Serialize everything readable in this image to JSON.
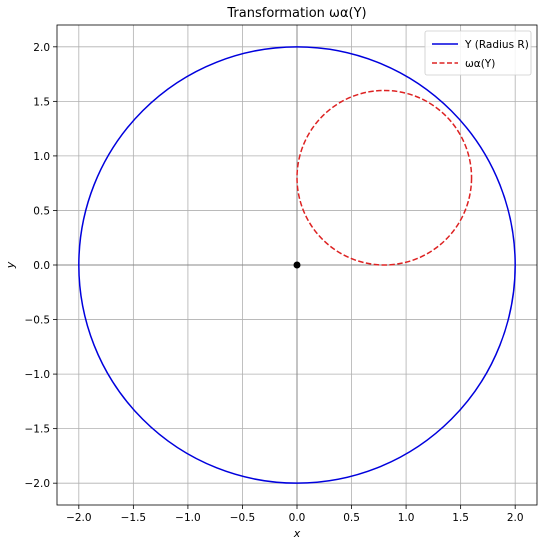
{
  "chart_data": {
    "type": "line",
    "title": "Transformation ωα(Y)",
    "xlabel": "x",
    "ylabel": "y",
    "xlim": [
      -2.2,
      2.2
    ],
    "ylim": [
      -2.2,
      2.2
    ],
    "x_ticks": [
      -2.0,
      -1.5,
      -1.0,
      -0.5,
      0.0,
      0.5,
      1.0,
      1.5,
      2.0
    ],
    "y_ticks": [
      -2.0,
      -1.5,
      -1.0,
      -0.5,
      0.0,
      0.5,
      1.0,
      1.5,
      2.0
    ],
    "x_tick_labels": [
      "−2.0",
      "−1.5",
      "−1.0",
      "−0.5",
      "0.0",
      "0.5",
      "1.0",
      "1.5",
      "2.0"
    ],
    "y_tick_labels": [
      "−2.0",
      "−1.5",
      "−1.0",
      "−0.5",
      "0.0",
      "0.5",
      "1.0",
      "1.5",
      "2.0"
    ],
    "grid": true,
    "legend_position": "top-right",
    "series": [
      {
        "name": "Y (Radius R)",
        "shape": "circle",
        "center": [
          0,
          0
        ],
        "radius": 2.0,
        "color": "#0000dd",
        "style": "solid"
      },
      {
        "name": "ωα(Y)",
        "shape": "circle",
        "center": [
          0.8,
          0.8
        ],
        "radius": 0.8,
        "color": "#dd2222",
        "style": "dashed"
      }
    ],
    "points": [
      {
        "x": 0,
        "y": 0,
        "color": "#000000"
      }
    ],
    "reference_lines": {
      "x": 0,
      "y": 0,
      "color": "#888888"
    }
  }
}
